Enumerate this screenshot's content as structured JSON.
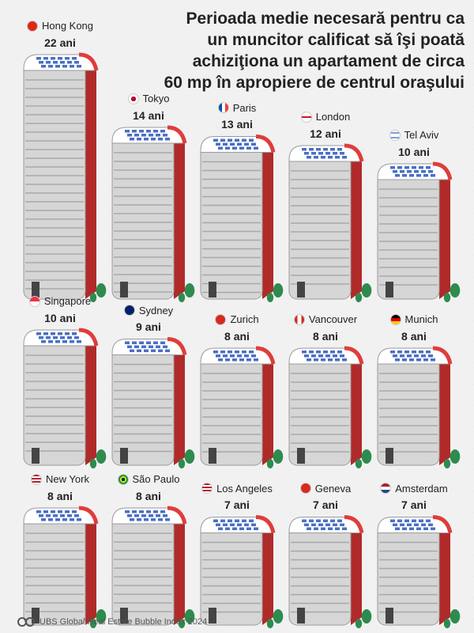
{
  "title_lines": [
    "Perioada medie necesară pentru ca",
    "un muncitor calificat să îşi poată",
    "achiziţiona un apartament de circa",
    "60 mp în apropiere de centrul oraşului"
  ],
  "footer": "UBS Global Real Estate Bubble Index 2024",
  "colors": {
    "roof_accent": "#e03c3c",
    "facade": "#d6d6d6",
    "window": "#4a6fc4",
    "tree": "#2e8b4e"
  },
  "chart_data": {
    "type": "bar",
    "unit_label": "ani",
    "categories": [
      "Hong Kong",
      "Tokyo",
      "Paris",
      "London",
      "Tel Aviv",
      "Singapore",
      "Sydney",
      "Zurich",
      "Vancouver",
      "Munich",
      "New York",
      "São Paulo",
      "Los Angeles",
      "Geneva",
      "Amsterdam"
    ],
    "values": [
      22,
      14,
      13,
      12,
      10,
      10,
      9,
      8,
      8,
      8,
      8,
      8,
      7,
      7,
      7
    ],
    "value_labels": [
      "22 ani",
      "14 ani",
      "13 ani",
      "12 ani",
      "10 ani",
      "10 ani",
      "9 ani",
      "8 ani",
      "8 ani",
      "8 ani",
      "8 ani",
      "8 ani",
      "7 ani",
      "7 ani",
      "7 ani"
    ],
    "flags": [
      "hk-flag",
      "jp-flag",
      "fr-flag",
      "gb-flag",
      "il-flag",
      "sg-flag",
      "au-flag",
      "ch-flag",
      "ca-flag",
      "de-flag",
      "us-flag",
      "br-flag",
      "us-flag",
      "ch-flag",
      "nl-flag"
    ]
  }
}
